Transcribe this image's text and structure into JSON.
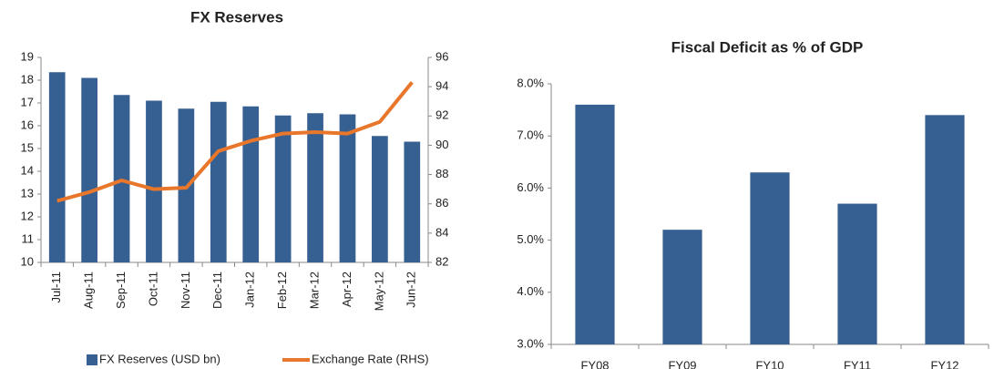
{
  "chart_data": [
    {
      "type": "bar",
      "title": "FX Reserves",
      "categories": [
        "Jul-11",
        "Aug-11",
        "Sep-11",
        "Oct-11",
        "Nov-11",
        "Dec-11",
        "Jan-12",
        "Feb-12",
        "Mar-12",
        "Apr-12",
        "May-12",
        "Jun-12"
      ],
      "series": [
        {
          "name": "FX Reserves (USD bn)",
          "type": "bar",
          "color": "#376092",
          "values": [
            18.35,
            18.1,
            17.35,
            17.1,
            16.75,
            17.05,
            16.85,
            16.45,
            16.55,
            16.5,
            15.55,
            15.3
          ]
        },
        {
          "name": "Exchange Rate (RHS)",
          "type": "line",
          "axis": "y2",
          "color": "#e8762b",
          "values": [
            86.2,
            86.8,
            87.6,
            87.0,
            87.1,
            89.6,
            90.3,
            90.8,
            90.9,
            90.8,
            91.6,
            94.3
          ]
        }
      ],
      "ylim": [
        10,
        19
      ],
      "yticks": [
        10,
        11,
        12,
        13,
        14,
        15,
        16,
        17,
        18,
        19
      ],
      "y2lim": [
        82,
        96
      ],
      "y2ticks": [
        82,
        84,
        86,
        88,
        90,
        92,
        94,
        96
      ],
      "grid": false,
      "legend": "bottom"
    },
    {
      "type": "bar",
      "title": "Fiscal Deficit as % of GDP",
      "categories": [
        "FY08",
        "FY09",
        "FY10",
        "FY11",
        "FY12"
      ],
      "series": [
        {
          "name": null,
          "type": "bar",
          "color": "#376092",
          "values": [
            7.6,
            5.2,
            6.3,
            5.7,
            7.4
          ]
        }
      ],
      "ylim": [
        3,
        8
      ],
      "yticks": [
        {
          "value": 3,
          "label": "3.0%"
        },
        {
          "value": 4,
          "label": "4.0%"
        },
        {
          "value": 5,
          "label": "5.0%"
        },
        {
          "value": 6,
          "label": "6.0%"
        },
        {
          "value": 7,
          "label": "7.0%"
        },
        {
          "value": 8,
          "label": "8.0%"
        }
      ],
      "grid": false
    }
  ]
}
